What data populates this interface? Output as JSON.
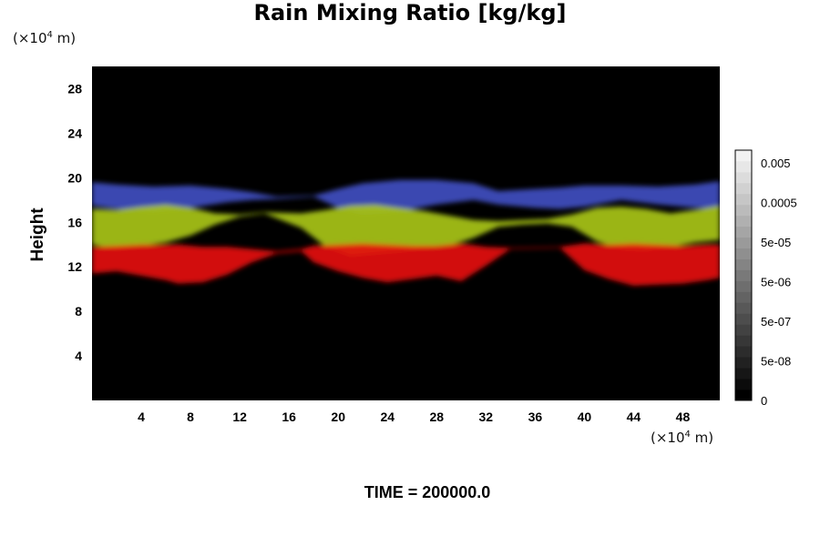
{
  "chart_data": {
    "type": "heatmap",
    "title": "Rain Mixing Ratio [kg/kg]",
    "ylabel": "Height",
    "xlabel": "",
    "x_unit": {
      "prefix": "(×10",
      "exp": "4",
      "suffix": " m)"
    },
    "y_unit": {
      "prefix": "(×10",
      "exp": "4",
      "suffix": " m)"
    },
    "xlim": [
      0,
      51
    ],
    "ylim": [
      0,
      30
    ],
    "x_ticks": [
      4,
      8,
      12,
      16,
      20,
      24,
      28,
      32,
      36,
      40,
      44,
      48
    ],
    "y_ticks": [
      4,
      8,
      12,
      16,
      20,
      24,
      28
    ],
    "colorbar": {
      "labels": [
        "0.005",
        "0.0005",
        "5e-05",
        "5e-06",
        "5e-07",
        "5e-08",
        "0"
      ],
      "colors": [
        "#000000",
        "#0b0b0b",
        "#161616",
        "#212121",
        "#2c2c2c",
        "#373737",
        "#424242",
        "#4d4d4d",
        "#585858",
        "#636363",
        "#6e6e6e",
        "#797979",
        "#848484",
        "#8f8f8f",
        "#9a9a9a",
        "#a5a5a5",
        "#b0b0b0",
        "#bbbbbb",
        "#c6c6c6",
        "#d1d1d1",
        "#dcdcdc",
        "#e7e7e7",
        "#f2f2f2"
      ]
    },
    "layers": [
      {
        "name": "red",
        "color": "#e41010",
        "bottom": 10.5,
        "top": 14.0
      },
      {
        "name": "yellow-green",
        "color": "#a8c417",
        "bottom": 13.5,
        "top": 17.2
      },
      {
        "name": "blue",
        "color": "#3f4fc0",
        "bottom": 16.5,
        "top": 19.8
      }
    ],
    "cells": [
      {
        "layer": "blue",
        "x": [
          0,
          2,
          5,
          8,
          11,
          13,
          15,
          18,
          20,
          22,
          25,
          28,
          31,
          33,
          36,
          38,
          40,
          43,
          46,
          49,
          51
        ],
        "low": [
          17.5,
          17.2,
          17.0,
          17.3,
          17.8,
          18.0,
          18.1,
          18.3,
          17.3,
          16.8,
          17.0,
          17.6,
          18.0,
          17.6,
          17.3,
          17.2,
          17.4,
          18.0,
          17.6,
          17.3,
          17.2
        ],
        "high": [
          19.6,
          19.4,
          19.2,
          19.3,
          19.0,
          18.7,
          18.3,
          18.4,
          19.0,
          19.5,
          19.8,
          19.8,
          19.5,
          18.8,
          19.0,
          19.1,
          19.3,
          19.3,
          19.2,
          19.4,
          19.7
        ]
      },
      {
        "layer": "yellow-green",
        "x": [
          0,
          2,
          4,
          6,
          8,
          10,
          12,
          14,
          17,
          19,
          21,
          23,
          25,
          27,
          29,
          31,
          33,
          35,
          37,
          39,
          41,
          43,
          45,
          47,
          49,
          51
        ],
        "low": [
          14.0,
          13.6,
          13.9,
          14.2,
          14.8,
          15.8,
          16.5,
          16.8,
          15.5,
          13.8,
          13.0,
          13.2,
          13.4,
          13.6,
          13.9,
          14.6,
          15.6,
          15.8,
          15.9,
          15.6,
          14.3,
          13.6,
          13.5,
          13.8,
          14.2,
          14.4
        ],
        "high": [
          17.2,
          17.1,
          17.4,
          17.6,
          17.3,
          16.8,
          16.7,
          16.9,
          16.8,
          17.1,
          17.5,
          17.6,
          17.3,
          17.0,
          16.6,
          16.2,
          16.1,
          16.2,
          16.3,
          16.7,
          17.3,
          17.4,
          17.2,
          16.8,
          17.1,
          17.5
        ]
      },
      {
        "layer": "red",
        "x": [
          0,
          2,
          4,
          6,
          7,
          9,
          11,
          13,
          15,
          17,
          18,
          20,
          22,
          24,
          26,
          28,
          30,
          32,
          34,
          38,
          40,
          42,
          44,
          46,
          48,
          50,
          51
        ],
        "low": [
          11.4,
          11.6,
          11.2,
          10.8,
          10.5,
          10.6,
          11.3,
          12.4,
          13.2,
          13.4,
          12.4,
          11.6,
          11.0,
          10.6,
          10.9,
          11.2,
          10.7,
          12.1,
          13.6,
          13.7,
          11.7,
          10.9,
          10.3,
          10.4,
          10.5,
          10.8,
          11.0
        ],
        "high": [
          13.8,
          13.9,
          14.0,
          14.0,
          14.0,
          13.8,
          13.8,
          13.6,
          13.4,
          13.6,
          13.9,
          14.0,
          14.1,
          14.0,
          13.9,
          13.9,
          14.1,
          13.8,
          13.7,
          13.8,
          14.1,
          14.0,
          14.1,
          14.0,
          13.9,
          14.0,
          14.0
        ]
      }
    ]
  },
  "footer": {
    "time_label": "TIME = 200000.0"
  }
}
